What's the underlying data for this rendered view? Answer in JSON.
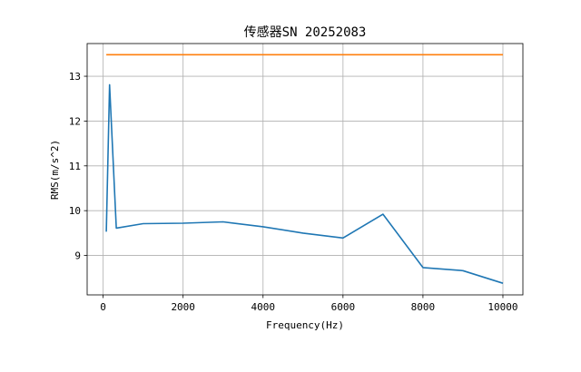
{
  "chart_data": {
    "type": "line",
    "title": "传感器SN 20252083",
    "xlabel": "Frequency(Hz)",
    "ylabel": "RMS(m/s^2)",
    "xlim": [
      -400,
      10500
    ],
    "ylim": [
      8.12,
      13.73
    ],
    "xticks": [
      0,
      2000,
      4000,
      6000,
      8000,
      10000
    ],
    "yticks": [
      9,
      10,
      11,
      12,
      13
    ],
    "grid": true,
    "series": [
      {
        "color": "#1f77b4",
        "x": [
          80,
          160,
          330,
          1000,
          2000,
          3000,
          4000,
          5000,
          6000,
          7000,
          8000,
          9000,
          10000
        ],
        "y": [
          9.53,
          12.81,
          9.61,
          9.71,
          9.72,
          9.75,
          9.64,
          9.5,
          9.39,
          9.92,
          8.73,
          8.66,
          8.38
        ]
      },
      {
        "color": "#ff7f0e",
        "x": [
          80,
          10000
        ],
        "y": [
          13.48,
          13.48
        ]
      }
    ]
  }
}
